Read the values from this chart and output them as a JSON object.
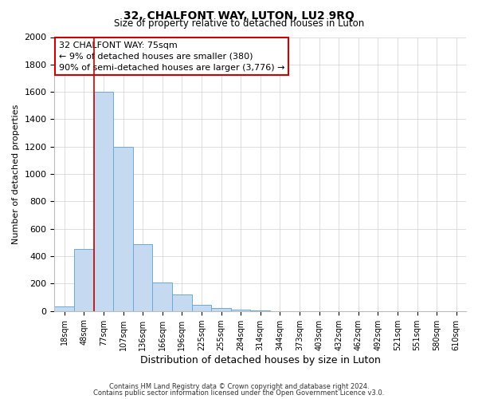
{
  "title": "32, CHALFONT WAY, LUTON, LU2 9RQ",
  "subtitle": "Size of property relative to detached houses in Luton",
  "xlabel": "Distribution of detached houses by size in Luton",
  "ylabel": "Number of detached properties",
  "bar_labels": [
    "18sqm",
    "48sqm",
    "77sqm",
    "107sqm",
    "136sqm",
    "166sqm",
    "196sqm",
    "225sqm",
    "255sqm",
    "284sqm",
    "314sqm",
    "344sqm",
    "373sqm",
    "403sqm",
    "432sqm",
    "462sqm",
    "492sqm",
    "521sqm",
    "551sqm",
    "580sqm",
    "610sqm"
  ],
  "bar_values": [
    35,
    450,
    1600,
    1200,
    490,
    210,
    120,
    45,
    20,
    10,
    5,
    0,
    0,
    0,
    0,
    0,
    0,
    0,
    0,
    0,
    0
  ],
  "bar_color": "#c5d9f0",
  "bar_edge_color": "#6aaad4",
  "vline_x": 1.5,
  "vline_color": "#cc0000",
  "ylim": [
    0,
    2000
  ],
  "annotation_line1": "32 CHALFONT WAY: 75sqm",
  "annotation_line2": "← 9% of detached houses are smaller (380)",
  "annotation_line3": "90% of semi-detached houses are larger (3,776) →",
  "footer_line1": "Contains HM Land Registry data © Crown copyright and database right 2024.",
  "footer_line2": "Contains public sector information licensed under the Open Government Licence v3.0.",
  "background_color": "#ffffff",
  "grid_color": "#d0d0d0"
}
